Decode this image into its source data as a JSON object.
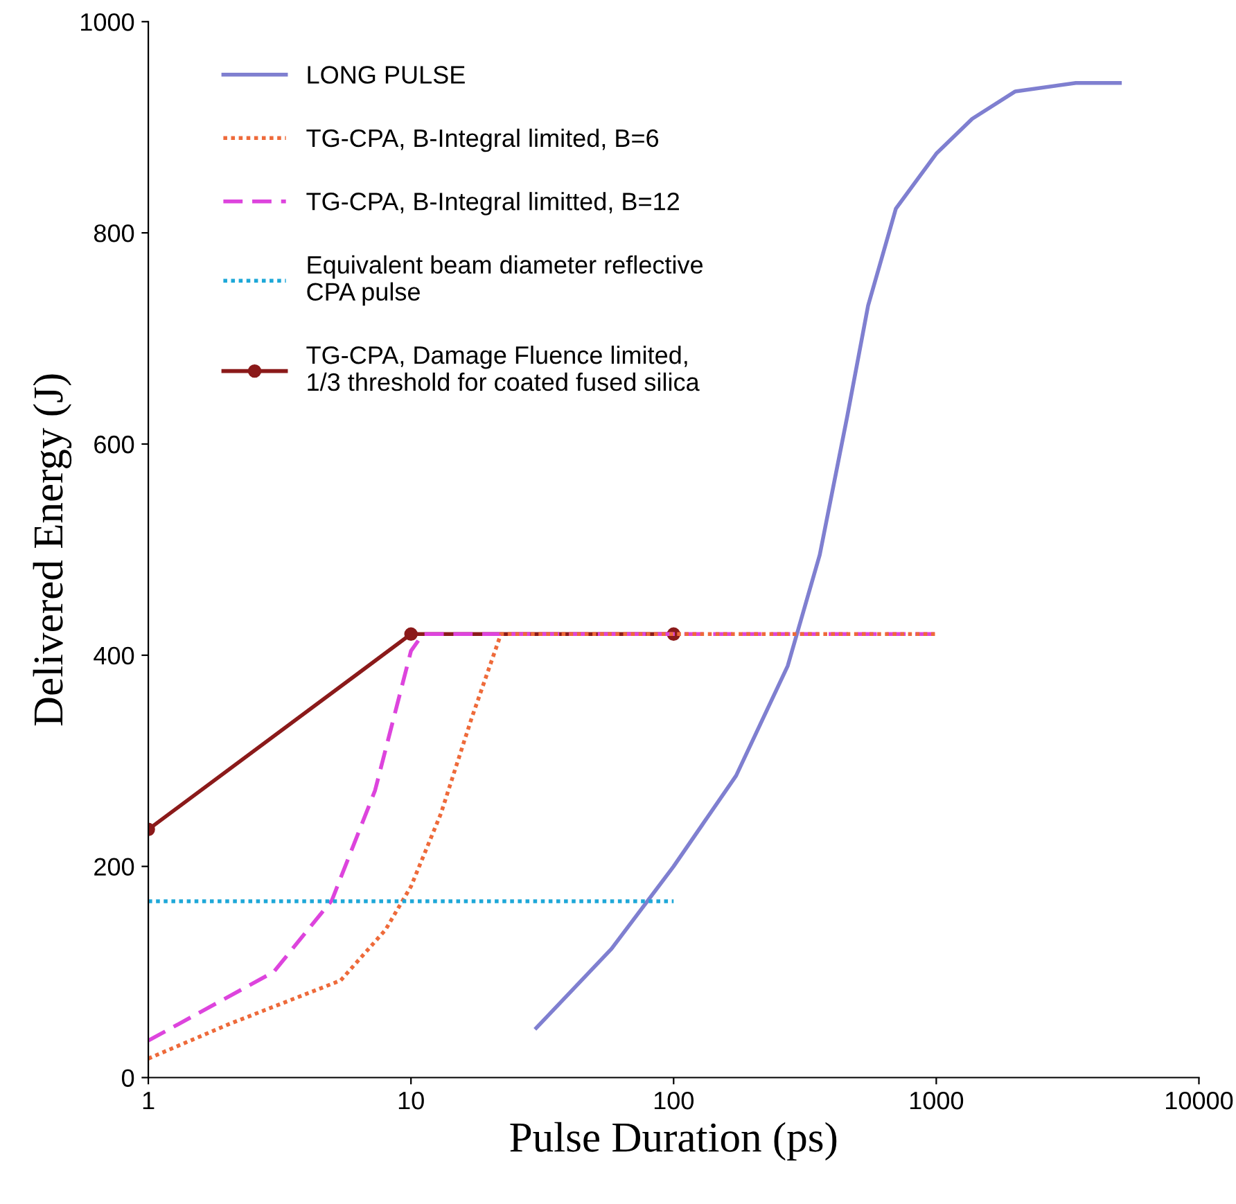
{
  "chart_data": {
    "type": "line",
    "xlabel": "Pulse Duration (ps)",
    "ylabel": "Delivered Energy (J)",
    "log": "x",
    "xlim": [
      1,
      10000
    ],
    "xticks": [
      1,
      10,
      100,
      1000,
      10000
    ],
    "ylim": [
      0,
      1000
    ],
    "yticks": [
      0,
      200,
      400,
      600,
      800,
      1000
    ],
    "grid": false,
    "legend": "top left",
    "series": [
      {
        "name": "LONG PULSE",
        "color": "#7f7fd0",
        "line_style": "solid",
        "marker": "none",
        "x": [
          30,
          58,
          100,
          173,
          272,
          360,
          458,
          550,
          702,
          1000,
          1370,
          2000,
          3400,
          5000
        ],
        "values": [
          47,
          122,
          200,
          286,
          390,
          495,
          626,
          731,
          823,
          875,
          908,
          934,
          942,
          942
        ]
      },
      {
        "name": "TG-CPA, B-Integral limited, B=6",
        "color": "#ee6a3a",
        "line_style": "dotted",
        "marker": "none",
        "x": [
          1,
          2,
          5.4,
          8,
          10,
          13,
          17,
          22,
          100,
          1000
        ],
        "values": [
          18,
          50,
          92,
          140,
          181,
          250,
          340,
          420,
          420,
          420
        ]
      },
      {
        "name": "TG-CPA, B-Integral limitted, B=12",
        "color": "#dd44dd",
        "line_style": "dashed",
        "marker": "none",
        "x": [
          1,
          3,
          5,
          7.3,
          10,
          11.1,
          100,
          1000
        ],
        "values": [
          35,
          100,
          168,
          272,
          404,
          420,
          420,
          420
        ]
      },
      {
        "name": "Equivalent beam diameter reflective\nCPA pulse",
        "color": "#1ea8d8",
        "line_style": "dotted",
        "marker": "none",
        "x": [
          1,
          100
        ],
        "values": [
          167,
          167
        ]
      },
      {
        "name": "TG-CPA, Damage Fluence limited,\n1/3 threshold for coated fused silica",
        "color": "#8b1a1a",
        "line_style": "solid",
        "marker": "circle",
        "x": [
          1,
          10,
          100
        ],
        "values": [
          235,
          420,
          420
        ]
      }
    ]
  }
}
